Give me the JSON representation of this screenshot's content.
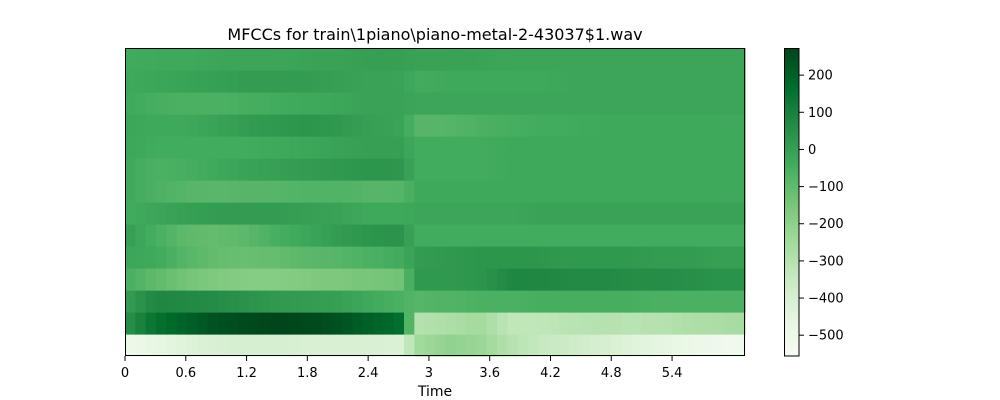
{
  "chart_data": {
    "type": "heatmap",
    "title": "MFCCs for train\\1piano\\piano-metal-2-43037$1.wav",
    "xlabel": "Time",
    "ylabel": "",
    "xlim": [
      0,
      6.12
    ],
    "x_ticks": [
      0,
      0.6,
      1.2,
      1.8,
      2.4,
      3,
      3.6,
      4.2,
      4.8,
      5.4
    ],
    "x_tick_labels": [
      "0",
      "0.6",
      "1.2",
      "1.8",
      "2.4",
      "3",
      "3.6",
      "4.2",
      "4.8",
      "5.4"
    ],
    "n_coefficients": 14,
    "row_order": "coefficient 1 at bottom, coefficient 14 at top",
    "time_knots": [
      0,
      0.3,
      0.6,
      0.9,
      1.2,
      1.5,
      1.8,
      2.1,
      2.4,
      2.7,
      2.9,
      3.2,
      3.5,
      3.8,
      4.1,
      4.4,
      4.7,
      5.0,
      5.3,
      5.6,
      5.9,
      6.12
    ],
    "z_values": [
      [
        -500,
        -470,
        -430,
        -410,
        -400,
        -400,
        -410,
        -410,
        -410,
        -420,
        -250,
        -210,
        -230,
        -300,
        -350,
        -370,
        -400,
        -430,
        -460,
        -490,
        -510,
        -520
      ],
      [
        40,
        150,
        200,
        240,
        260,
        270,
        260,
        240,
        200,
        170,
        -300,
        -280,
        -250,
        -330,
        -330,
        -310,
        -300,
        -310,
        -300,
        -280,
        -270,
        -260
      ],
      [
        0,
        80,
        70,
        60,
        40,
        20,
        10,
        0,
        -30,
        -60,
        -80,
        -70,
        -60,
        -60,
        -50,
        -50,
        -50,
        -50,
        -60,
        -60,
        -60,
        -60
      ],
      [
        -50,
        -100,
        -140,
        -170,
        -180,
        -180,
        -170,
        -160,
        -150,
        -140,
        20,
        20,
        30,
        80,
        80,
        70,
        70,
        60,
        60,
        50,
        40,
        40
      ],
      [
        -20,
        -30,
        -80,
        -110,
        -120,
        -110,
        -90,
        -80,
        -60,
        -40,
        10,
        20,
        30,
        30,
        30,
        20,
        20,
        20,
        10,
        10,
        0,
        0
      ],
      [
        10,
        -50,
        -100,
        -110,
        -90,
        -50,
        -20,
        10,
        30,
        40,
        -40,
        -40,
        -40,
        -40,
        -40,
        -40,
        -40,
        -40,
        -40,
        -40,
        -40,
        -40
      ],
      [
        -40,
        -20,
        0,
        10,
        10,
        10,
        0,
        -10,
        -30,
        -30,
        -20,
        -20,
        -20,
        -20,
        -10,
        -10,
        -10,
        -10,
        -10,
        -10,
        -10,
        -10
      ],
      [
        -30,
        -60,
        -80,
        -90,
        -80,
        -80,
        -70,
        -70,
        -80,
        -80,
        -30,
        -30,
        -30,
        -30,
        -30,
        -30,
        -30,
        -30,
        -30,
        -30,
        -30,
        -30
      ],
      [
        -30,
        -60,
        -50,
        -30,
        -10,
        0,
        10,
        20,
        30,
        30,
        -40,
        -40,
        -40,
        -30,
        -30,
        -30,
        -30,
        -30,
        -30,
        -30,
        -30,
        -30
      ],
      [
        -20,
        -40,
        -40,
        -40,
        -40,
        -30,
        -20,
        -10,
        0,
        0,
        -40,
        -40,
        -40,
        -30,
        -30,
        -30,
        -30,
        -30,
        -30,
        -30,
        -30,
        -30
      ],
      [
        -20,
        -30,
        -30,
        -10,
        10,
        20,
        30,
        20,
        0,
        -10,
        -80,
        -80,
        -60,
        -50,
        -40,
        -40,
        -30,
        -30,
        -30,
        -30,
        -30,
        -30
      ],
      [
        -30,
        -50,
        -60,
        -60,
        -50,
        -40,
        -30,
        -20,
        -10,
        -10,
        -20,
        -20,
        -20,
        -20,
        -20,
        -20,
        -20,
        -20,
        -20,
        -20,
        -20,
        -20
      ],
      [
        -30,
        -20,
        -10,
        0,
        10,
        10,
        10,
        0,
        -10,
        -10,
        -40,
        -30,
        -30,
        -30,
        -30,
        -20,
        -20,
        -20,
        -20,
        -20,
        -20,
        -20
      ],
      [
        -40,
        -30,
        -30,
        -20,
        -20,
        -20,
        -10,
        -10,
        0,
        0,
        -10,
        -10,
        -10,
        -20,
        -20,
        -20,
        -20,
        -20,
        -20,
        -20,
        -20,
        -20
      ]
    ],
    "colormap": "Greens (reversed)",
    "colormap_stops": [
      "#f7fcf5",
      "#e5f5e0",
      "#c7e9c0",
      "#a1d99b",
      "#74c476",
      "#41ab5d",
      "#238b45",
      "#006d2c",
      "#00441b"
    ],
    "zlim": [
      -556,
      273
    ],
    "colorbar_ticks": [
      200,
      100,
      0,
      -100,
      -200,
      -300,
      -400,
      -500
    ],
    "colorbar_tick_labels": [
      "200",
      "100",
      "0",
      "−100",
      "−200",
      "−300",
      "−400",
      "−500"
    ],
    "grid": false,
    "legend": "colorbar at right"
  }
}
